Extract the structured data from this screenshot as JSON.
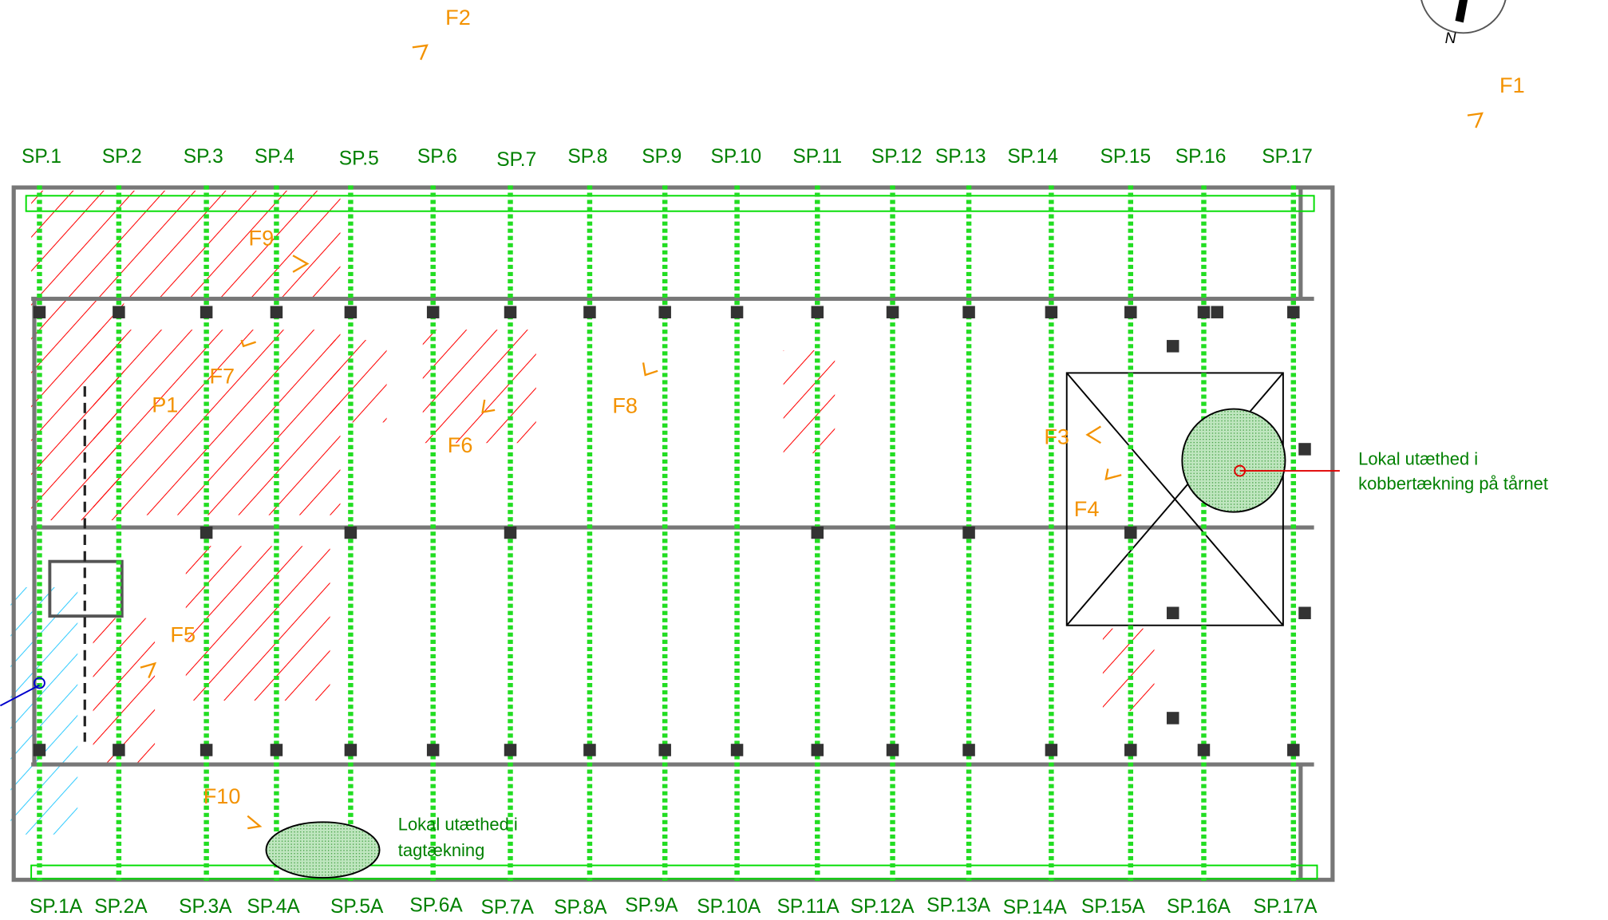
{
  "top_labels": [
    "SP.1",
    "SP.2",
    "SP.3",
    "SP.4",
    "SP.5",
    "SP.6",
    "SP.7",
    "SP.8",
    "SP.9",
    "SP.10",
    "SP.11",
    "SP.12",
    "SP.13",
    "SP.14",
    "SP.15",
    "SP.16",
    "SP.17"
  ],
  "bottom_labels": [
    "SP.1A",
    "SP.2A",
    "SP.3A",
    "SP.4A",
    "SP.5A",
    "SP.6A",
    "SP.7A",
    "SP.8A",
    "SP.9A",
    "SP.10A",
    "SP.11A",
    "SP.12A",
    "SP.13A",
    "SP.14A",
    "SP.15A",
    "SP.16A",
    "SP.17A"
  ],
  "markers": [
    "F1",
    "F2",
    "F3",
    "F4",
    "F5",
    "F6",
    "F7",
    "F8",
    "F9",
    "F10"
  ],
  "zone": "P1",
  "notes": [
    {
      "lines": [
        "Lokal utæthed i",
        "kobbertækning på tårnet"
      ]
    },
    {
      "lines": [
        "Lokal utæthed i",
        "tagtækning"
      ]
    }
  ],
  "compass": "N"
}
